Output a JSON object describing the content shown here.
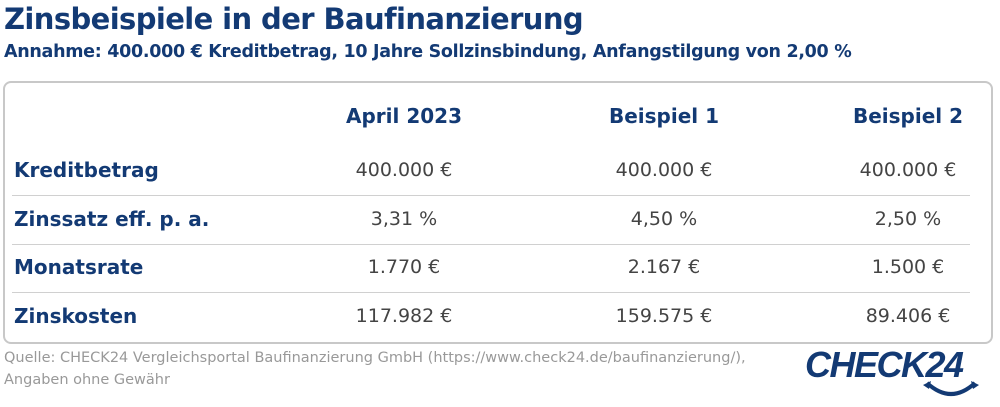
{
  "title": "Zinsbeispiele in der Baufinanzierung",
  "subtitle": "Annahme: 400.000 € Kreditbetrag, 10 Jahre Sollzinsbindung, Anfangstilgung von 2,00 %",
  "table": {
    "columns": [
      "April 2023",
      "Beispiel 1",
      "Beispiel 2"
    ],
    "rows": [
      {
        "label": "Kreditbetrag",
        "values": [
          "400.000 €",
          "400.000 €",
          "400.000 €"
        ]
      },
      {
        "label": "Zinssatz eff. p. a.",
        "values": [
          "3,31 %",
          "4,50 %",
          "2,50 %"
        ]
      },
      {
        "label": "Monatsrate",
        "values": [
          "1.770 €",
          "2.167 €",
          "1.500 €"
        ]
      },
      {
        "label": "Zinskosten",
        "values": [
          "117.982 €",
          "159.575 €",
          "89.406 €"
        ]
      }
    ]
  },
  "source": {
    "line1": "Quelle: CHECK24 Vergleichsportal Baufinanzierung GmbH (https://www.check24.de/baufinanzierung/),",
    "line2": "Angaben ohne Gewähr"
  },
  "logo": {
    "text": "CHECK24",
    "color": "#133a74"
  },
  "colors": {
    "accent": "#133a74",
    "text": "#444444",
    "border": "#c8c8c8"
  }
}
